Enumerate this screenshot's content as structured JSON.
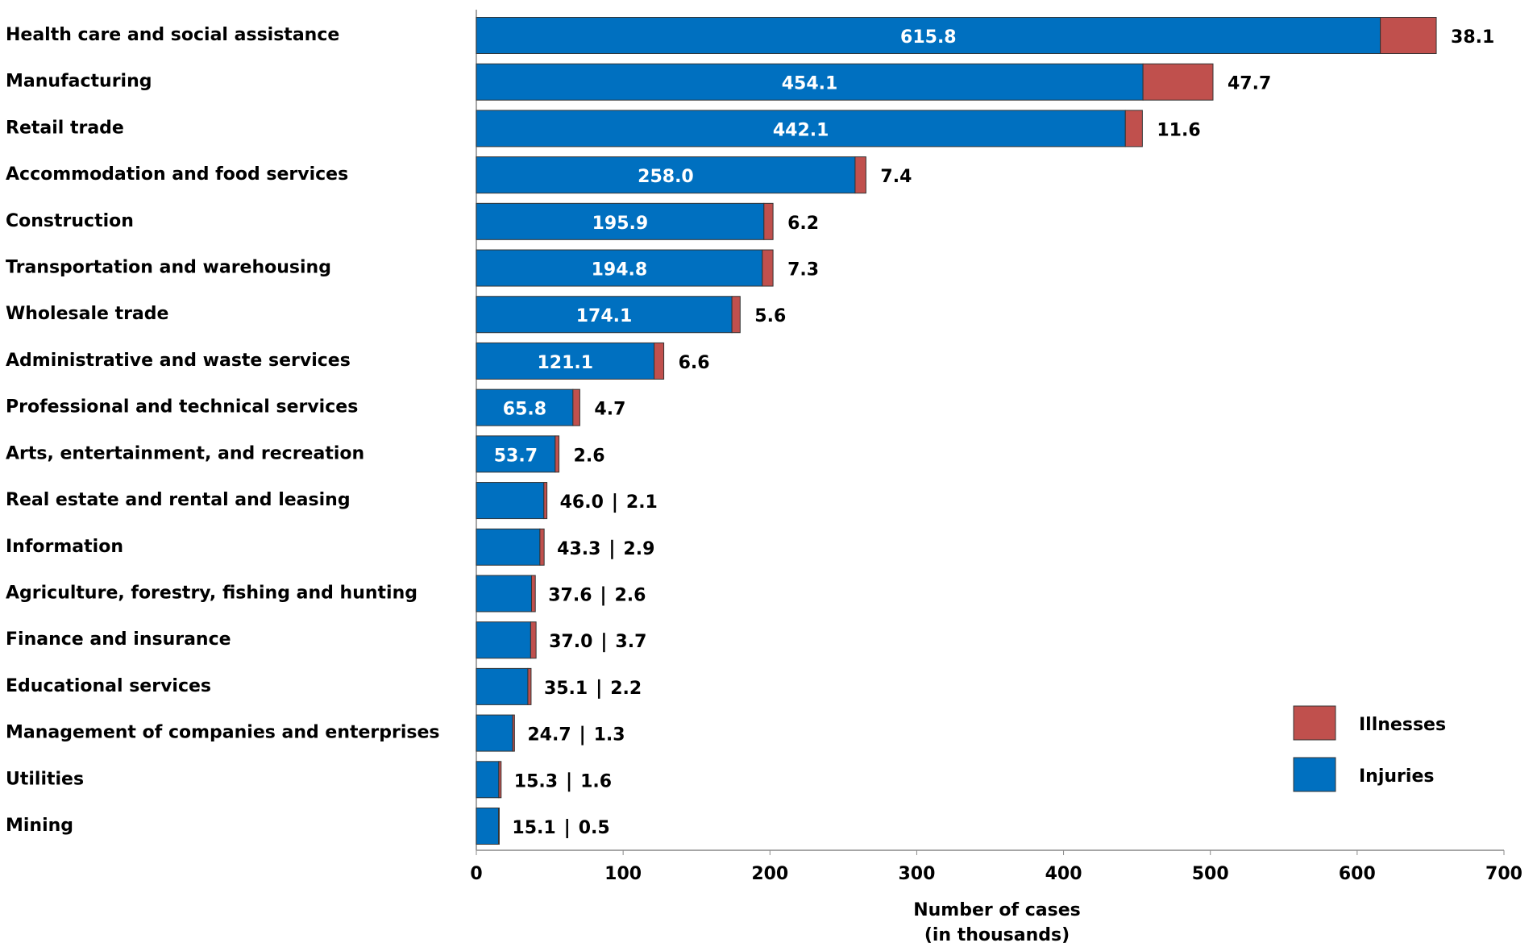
{
  "chart_data": {
    "type": "stacked-bar-horizontal",
    "categories": [
      "Health care and social assistance",
      "Manufacturing",
      "Retail trade",
      "Accommodation and food services",
      "Construction",
      "Transportation and warehousing",
      "Wholesale trade",
      "Administrative and waste services",
      "Professional and technical services",
      "Arts, entertainment, and recreation",
      "Real estate and rental and leasing",
      "Information",
      "Agriculture, forestry, fishing and hunting",
      "Finance and insurance",
      "Educational services",
      "Management of companies and enterprises",
      "Utilities",
      "Mining"
    ],
    "series": [
      {
        "name": "Injuries",
        "color": "#0070c0",
        "values": [
          615.8,
          454.1,
          442.1,
          258.0,
          195.9,
          194.8,
          174.1,
          121.1,
          65.8,
          53.7,
          46.0,
          43.3,
          37.6,
          37.0,
          35.1,
          24.7,
          15.3,
          15.1
        ],
        "value_labels": [
          "615.8",
          "454.1",
          "442.1",
          "258.0",
          "195.9",
          "194.8",
          "174.1",
          "121.1",
          "65.8",
          "53.7",
          "46.0",
          "43.3",
          "37.6",
          "37.0",
          "35.1",
          "24.7",
          "15.3",
          "15.1"
        ]
      },
      {
        "name": "Illnesses",
        "color": "#c0504d",
        "values": [
          38.1,
          47.7,
          11.6,
          7.4,
          6.2,
          7.3,
          5.6,
          6.6,
          4.7,
          2.6,
          2.1,
          2.9,
          2.6,
          3.7,
          2.2,
          1.3,
          1.6,
          0.5
        ],
        "value_labels": [
          "38.1",
          "47.7",
          "11.6",
          "7.4",
          "6.2",
          "7.3",
          "5.6",
          "6.6",
          "4.7",
          "2.6",
          "2.1",
          "2.9",
          "2.6",
          "3.7",
          "2.2",
          "1.3",
          "1.6",
          "0.5"
        ]
      }
    ],
    "xlabel": [
      "Number of cases",
      "(in thousands)"
    ],
    "xlim": [
      0,
      700
    ],
    "xticks": [
      0,
      100,
      200,
      300,
      400,
      500,
      600,
      700
    ],
    "grid": false,
    "legend": "lower right"
  }
}
